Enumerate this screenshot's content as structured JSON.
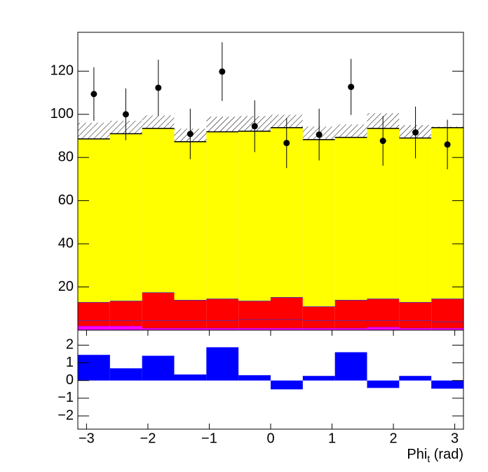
{
  "chart_data": [
    {
      "type": "histogram",
      "bins": [
        -3.1416,
        -2.618,
        -2.0944,
        -1.5708,
        -1.0472,
        -0.5236,
        0,
        0.5236,
        1.0472,
        1.5708,
        2.0944,
        2.618,
        3.1416
      ],
      "series": [
        {
          "color": "#ff00ff",
          "line_color": "#aa00aa",
          "values": [
            2,
            2,
            1,
            1,
            1,
            1,
            1,
            1,
            1,
            1.5,
            1,
            1
          ]
        },
        {
          "color": "#ff0000",
          "line_color": "#3333cc",
          "values": [
            2.5,
            2.5,
            3.5,
            3.5,
            3.5,
            4,
            4,
            3.5,
            3.5,
            3,
            3.5,
            3
          ]
        },
        {
          "color": "#ff0000",
          "line_color": "#3333cc",
          "values": [
            8.5,
            9.1,
            13,
            9.5,
            10.1,
            8.6,
            10.3,
            6.5,
            9.5,
            10.1,
            8.5,
            10.6
          ]
        },
        {
          "color": "#ffff00",
          "line_color": "#000000",
          "values": [
            75.6,
            77.4,
            76,
            73.3,
            77.3,
            78.6,
            78.5,
            77.3,
            75.3,
            78.9,
            76,
            79.2
          ]
        }
      ],
      "band_errors": [
        7.5,
        6,
        6,
        6,
        7,
        7,
        6,
        6,
        6,
        7,
        6,
        0.5
      ],
      "points": {
        "color": "#000000",
        "x": [
          -2.88,
          -2.36,
          -1.83,
          -1.31,
          -0.79,
          -0.26,
          0.26,
          0.79,
          1.31,
          1.83,
          2.36,
          2.88
        ],
        "values": [
          109.4,
          100,
          112.3,
          90.9,
          119.8,
          94.5,
          86.7,
          90.6,
          112.7,
          87.7,
          91.6,
          86
        ],
        "errors": [
          12.4,
          12,
          13,
          11.7,
          13.6,
          12,
          11.6,
          12,
          13,
          11.5,
          12,
          11.5
        ]
      },
      "xlim": [
        -3.1416,
        3.1416
      ],
      "ylim": [
        0,
        138
      ],
      "yticks": [
        20,
        40,
        60,
        80,
        100,
        120
      ]
    },
    {
      "type": "histogram",
      "bins": [
        -3.1416,
        -2.618,
        -2.0944,
        -1.5708,
        -1.0472,
        -0.5236,
        0,
        0.5236,
        1.0472,
        1.5708,
        2.0944,
        2.618,
        3.1416
      ],
      "values": [
        1.45,
        0.69,
        1.4,
        0.34,
        1.88,
        0.3,
        -0.5,
        0.26,
        1.6,
        -0.42,
        0.26,
        -0.46
      ],
      "color": "#0000ff",
      "xlim": [
        -3.1416,
        3.1416
      ],
      "ylim": [
        -2.75,
        2.85
      ],
      "yticks": [
        {
          "value": -2,
          "label": "−2"
        },
        {
          "value": -1,
          "label": "−1"
        },
        0,
        1,
        2
      ],
      "xticks": [
        {
          "value": -3,
          "label": "−3"
        },
        {
          "value": -2,
          "label": "−2"
        },
        {
          "value": -1,
          "label": "−1"
        },
        0,
        1,
        2,
        3
      ],
      "xlabel": [
        "Phi",
        "t",
        " (rad)"
      ]
    }
  ]
}
